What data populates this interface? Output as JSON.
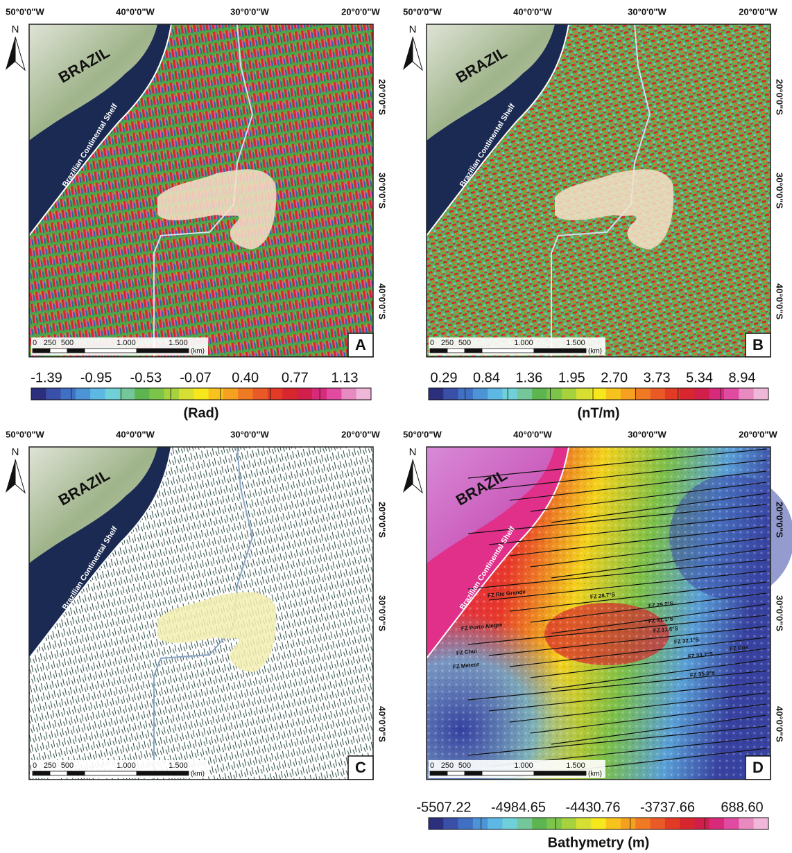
{
  "panels": [
    {
      "letter": "A",
      "lon_labels": [
        "50°0'0\"W",
        "40°0'0\"W",
        "30°0'0\"W",
        "20°0'0\"W"
      ],
      "lat_labels": [
        "20°0'0\"S",
        "30°0'0\"S",
        "40°0'0\"S"
      ],
      "north": "N",
      "country": "BRAZIL",
      "shelf": "Brazilian Continental Shelf",
      "scale": {
        "ticks": [
          "0",
          "250",
          "500",
          "1.000",
          "1.500"
        ],
        "unit": "(km)"
      },
      "colorbar": {
        "labels": [
          "-1.39",
          "-0.95",
          "-0.53",
          "-0.07",
          "0.40",
          "0.77",
          "1.13"
        ],
        "title": "(Rad)"
      }
    },
    {
      "letter": "B",
      "lon_labels": [
        "50°0'0\"W",
        "40°0'0\"W",
        "30°0'0\"W",
        "20°0'0\"W"
      ],
      "lat_labels": [
        "20°0'0\"S",
        "30°0'0\"S",
        "40°0'0\"S"
      ],
      "north": "N",
      "country": "BRAZIL",
      "shelf": "Brazilian Continental Shelf",
      "scale": {
        "ticks": [
          "0",
          "250",
          "500",
          "1.000",
          "1.500"
        ],
        "unit": "(km)"
      },
      "colorbar": {
        "labels": [
          "0.29",
          "0.84",
          "1.36",
          "1.95",
          "2.70",
          "3.73",
          "5.34",
          "8.94"
        ],
        "title": "(nT/m)"
      }
    },
    {
      "letter": "C",
      "lon_labels": [
        "50°0'0\"W",
        "40°0'0\"W",
        "30°0'0\"W",
        "20°0'0\"W"
      ],
      "lat_labels": [
        "20°0'0\"S",
        "30°0'0\"S",
        "40°0'0\"S"
      ],
      "north": "N",
      "country": "BRAZIL",
      "shelf": "Brazilian Continental Shelf",
      "scale": {
        "ticks": [
          "0",
          "250",
          "500",
          "1.000",
          "1.500"
        ],
        "unit": "(km)"
      }
    },
    {
      "letter": "D",
      "lon_labels": [
        "50°0'0\"W",
        "40°0'0\"W",
        "30°0'0\"W",
        "20°0'0\"W"
      ],
      "lat_labels": [
        "20°0'0\"S",
        "30°0'0\"S",
        "40°0'0\"S"
      ],
      "north": "N",
      "country": "BRAZIL",
      "shelf": "Brazilian Continental Shelf",
      "scale": {
        "ticks": [
          "0",
          "250",
          "500",
          "1.000",
          "1.500"
        ],
        "unit": "(km)"
      },
      "colorbar": {
        "labels": [
          "-5507.22",
          "-4984.65",
          "-4430.76",
          "-3737.66",
          "688.60"
        ],
        "title": "Bathymetry (m)"
      },
      "fracture_zones": [
        "FZ Rio Grande",
        "FZ 28.7°S",
        "FZ 29.2°S",
        "FZ Porto Alegre",
        "FZ 31.1°S",
        "FZ 31.6°S",
        "FZ 32.1°S",
        "FZ Cox",
        "FZ Chuí",
        "FZ 33.7°S",
        "FZ Meteor",
        "FZ 35.3°S"
      ]
    }
  ]
}
